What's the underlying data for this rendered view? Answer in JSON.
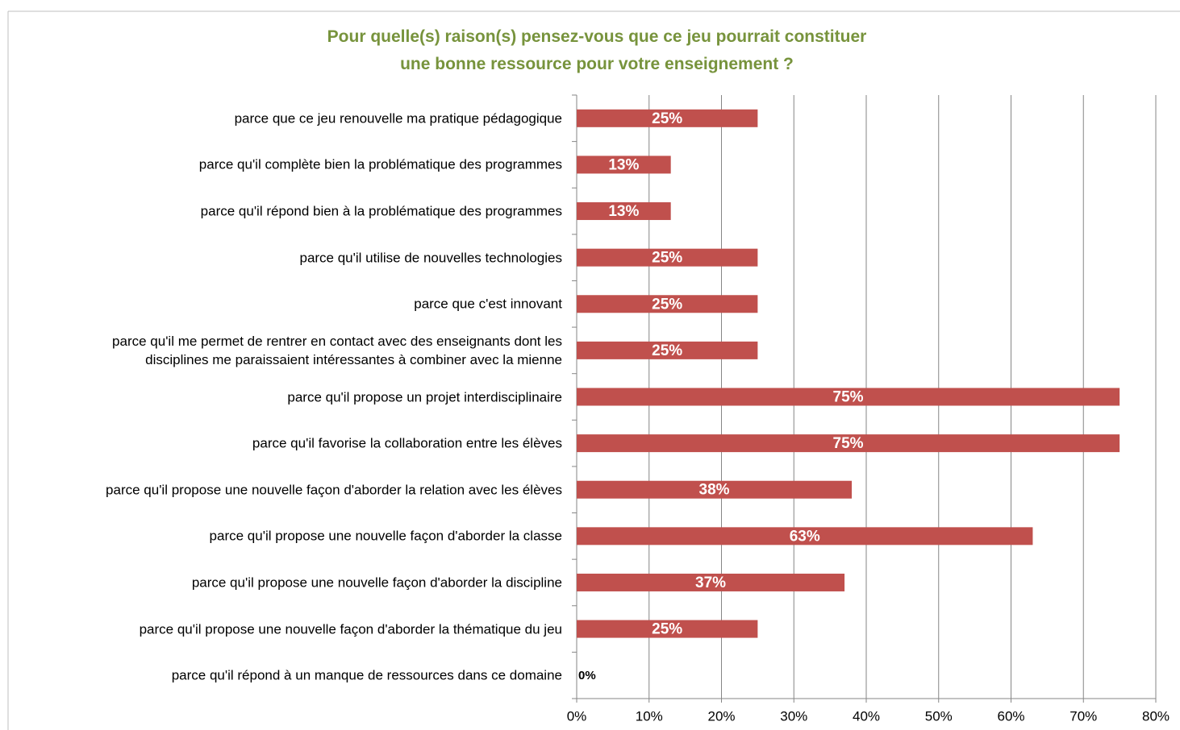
{
  "chart_data": {
    "type": "bar",
    "orientation": "horizontal",
    "title": "Pour quelle(s) raison(s) pensez-vous que ce jeu pourrait constituer\nune bonne ressource pour votre enseignement ?",
    "categories": [
      "parce que ce jeu renouvelle ma pratique pédagogique",
      "parce qu'il complète bien la problématique des programmes",
      "parce qu'il répond bien à la problématique des programmes",
      "parce qu'il utilise de nouvelles technologies",
      "parce que c'est innovant",
      "parce qu'il me permet de rentrer en contact avec des enseignants dont les\ndisciplines me paraissaient intéressantes à combiner avec la mienne",
      "parce qu'il propose un projet interdisciplinaire",
      "parce qu'il favorise la collaboration entre les élèves",
      "parce qu'il propose une nouvelle façon d'aborder la relation avec les élèves",
      "parce qu'il propose une nouvelle façon d'aborder la classe",
      "parce qu'il propose une nouvelle façon d'aborder la discipline",
      "parce qu'il propose une nouvelle façon d'aborder la thématique du jeu",
      "parce qu'il répond à un manque de ressources dans ce domaine"
    ],
    "values": [
      25,
      13,
      13,
      25,
      25,
      25,
      75,
      75,
      38,
      63,
      37,
      25,
      0
    ],
    "value_labels": [
      "25%",
      "13%",
      "13%",
      "25%",
      "25%",
      "25%",
      "75%",
      "75%",
      "38%",
      "63%",
      "37%",
      "25%",
      "0%"
    ],
    "color": "#c0504d",
    "xlim": [
      0,
      80
    ],
    "xticks": [
      {
        "value": 0,
        "label": "0%"
      },
      {
        "value": 10,
        "label": "10%"
      },
      {
        "value": 20,
        "label": "20%"
      },
      {
        "value": 30,
        "label": "30%"
      },
      {
        "value": 40,
        "label": "40%"
      },
      {
        "value": 50,
        "label": "50%"
      },
      {
        "value": 60,
        "label": "60%"
      },
      {
        "value": 70,
        "label": "70%"
      },
      {
        "value": 80,
        "label": "80%"
      }
    ],
    "grid": true
  }
}
